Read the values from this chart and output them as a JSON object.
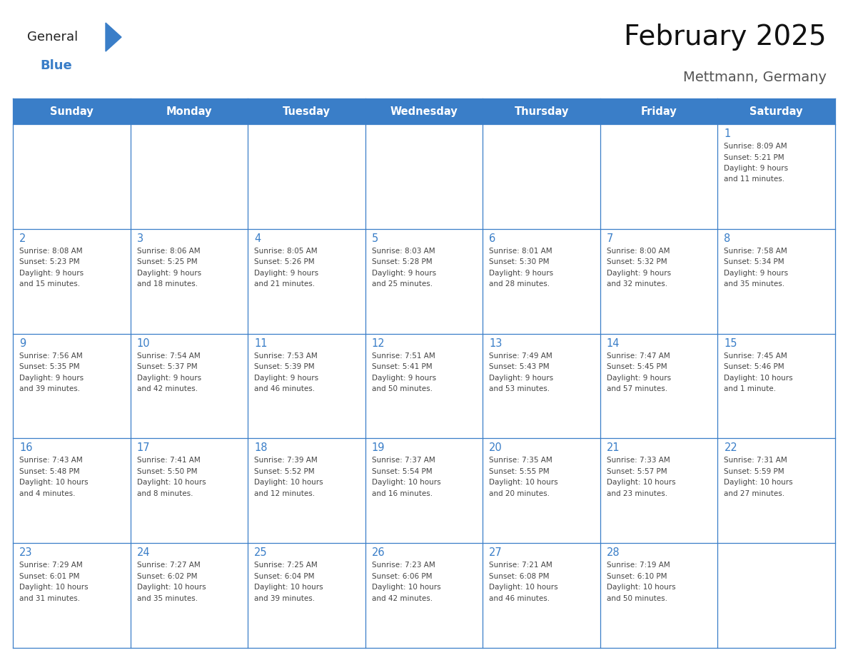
{
  "title": "February 2025",
  "subtitle": "Mettmann, Germany",
  "days_of_week": [
    "Sunday",
    "Monday",
    "Tuesday",
    "Wednesday",
    "Thursday",
    "Friday",
    "Saturday"
  ],
  "header_bg": "#3a7ec8",
  "header_text": "#ffffff",
  "border_color": "#3a7ec8",
  "day_number_color": "#3a7ec8",
  "text_color": "#444444",
  "logo_general_color": "#222222",
  "logo_blue_color": "#3a7ec8",
  "calendar": [
    [
      null,
      null,
      null,
      null,
      null,
      null,
      {
        "day": 1,
        "sunrise": "8:09 AM",
        "sunset": "5:21 PM",
        "daylight": "9 hours\nand 11 minutes."
      }
    ],
    [
      {
        "day": 2,
        "sunrise": "8:08 AM",
        "sunset": "5:23 PM",
        "daylight": "9 hours\nand 15 minutes."
      },
      {
        "day": 3,
        "sunrise": "8:06 AM",
        "sunset": "5:25 PM",
        "daylight": "9 hours\nand 18 minutes."
      },
      {
        "day": 4,
        "sunrise": "8:05 AM",
        "sunset": "5:26 PM",
        "daylight": "9 hours\nand 21 minutes."
      },
      {
        "day": 5,
        "sunrise": "8:03 AM",
        "sunset": "5:28 PM",
        "daylight": "9 hours\nand 25 minutes."
      },
      {
        "day": 6,
        "sunrise": "8:01 AM",
        "sunset": "5:30 PM",
        "daylight": "9 hours\nand 28 minutes."
      },
      {
        "day": 7,
        "sunrise": "8:00 AM",
        "sunset": "5:32 PM",
        "daylight": "9 hours\nand 32 minutes."
      },
      {
        "day": 8,
        "sunrise": "7:58 AM",
        "sunset": "5:34 PM",
        "daylight": "9 hours\nand 35 minutes."
      }
    ],
    [
      {
        "day": 9,
        "sunrise": "7:56 AM",
        "sunset": "5:35 PM",
        "daylight": "9 hours\nand 39 minutes."
      },
      {
        "day": 10,
        "sunrise": "7:54 AM",
        "sunset": "5:37 PM",
        "daylight": "9 hours\nand 42 minutes."
      },
      {
        "day": 11,
        "sunrise": "7:53 AM",
        "sunset": "5:39 PM",
        "daylight": "9 hours\nand 46 minutes."
      },
      {
        "day": 12,
        "sunrise": "7:51 AM",
        "sunset": "5:41 PM",
        "daylight": "9 hours\nand 50 minutes."
      },
      {
        "day": 13,
        "sunrise": "7:49 AM",
        "sunset": "5:43 PM",
        "daylight": "9 hours\nand 53 minutes."
      },
      {
        "day": 14,
        "sunrise": "7:47 AM",
        "sunset": "5:45 PM",
        "daylight": "9 hours\nand 57 minutes."
      },
      {
        "day": 15,
        "sunrise": "7:45 AM",
        "sunset": "5:46 PM",
        "daylight": "10 hours\nand 1 minute."
      }
    ],
    [
      {
        "day": 16,
        "sunrise": "7:43 AM",
        "sunset": "5:48 PM",
        "daylight": "10 hours\nand 4 minutes."
      },
      {
        "day": 17,
        "sunrise": "7:41 AM",
        "sunset": "5:50 PM",
        "daylight": "10 hours\nand 8 minutes."
      },
      {
        "day": 18,
        "sunrise": "7:39 AM",
        "sunset": "5:52 PM",
        "daylight": "10 hours\nand 12 minutes."
      },
      {
        "day": 19,
        "sunrise": "7:37 AM",
        "sunset": "5:54 PM",
        "daylight": "10 hours\nand 16 minutes."
      },
      {
        "day": 20,
        "sunrise": "7:35 AM",
        "sunset": "5:55 PM",
        "daylight": "10 hours\nand 20 minutes."
      },
      {
        "day": 21,
        "sunrise": "7:33 AM",
        "sunset": "5:57 PM",
        "daylight": "10 hours\nand 23 minutes."
      },
      {
        "day": 22,
        "sunrise": "7:31 AM",
        "sunset": "5:59 PM",
        "daylight": "10 hours\nand 27 minutes."
      }
    ],
    [
      {
        "day": 23,
        "sunrise": "7:29 AM",
        "sunset": "6:01 PM",
        "daylight": "10 hours\nand 31 minutes."
      },
      {
        "day": 24,
        "sunrise": "7:27 AM",
        "sunset": "6:02 PM",
        "daylight": "10 hours\nand 35 minutes."
      },
      {
        "day": 25,
        "sunrise": "7:25 AM",
        "sunset": "6:04 PM",
        "daylight": "10 hours\nand 39 minutes."
      },
      {
        "day": 26,
        "sunrise": "7:23 AM",
        "sunset": "6:06 PM",
        "daylight": "10 hours\nand 42 minutes."
      },
      {
        "day": 27,
        "sunrise": "7:21 AM",
        "sunset": "6:08 PM",
        "daylight": "10 hours\nand 46 minutes."
      },
      {
        "day": 28,
        "sunrise": "7:19 AM",
        "sunset": "6:10 PM",
        "daylight": "10 hours\nand 50 minutes."
      },
      null
    ]
  ]
}
